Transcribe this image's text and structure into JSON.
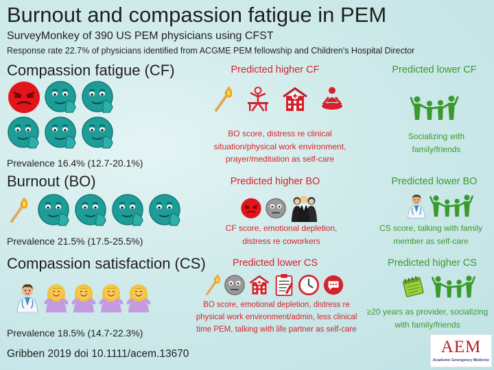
{
  "header": {
    "title": "Burnout and compassion fatigue in PEM",
    "subtitle": "SurveyMonkey of 390 US PEM physicians using CFST",
    "response_rate": "Response rate 22.7% of physicians identified from ACGME PEM fellowship and Children's Hospital Director"
  },
  "colors": {
    "red": "#d6212b",
    "green": "#3a9a2d",
    "teal_face": "#1e9c97",
    "logo_red": "#b52020"
  },
  "cf": {
    "title": "Compassion fatigue (CF)",
    "prevalence": "Prevalence 16.4% (12.7-20.1%)",
    "icons": [
      "red-stressed-face-icon",
      "teal-face-icon",
      "teal-face-icon",
      "teal-face-icon",
      "teal-face-icon",
      "teal-face-icon"
    ],
    "higher": {
      "heading": "Predicted higher CF",
      "icons": [
        "burning-match-icon",
        "stressed-worker-icon",
        "hospital-icon",
        "meditation-icon"
      ],
      "line1": "BO score, distress re clinical",
      "line2": "situation/physical work environment,",
      "line3": "prayer/meditation as self-care"
    },
    "lower": {
      "heading": "Predicted lower CF",
      "icons": [
        "family-group-icon"
      ],
      "line1": "Socializing with",
      "line2": "family/friends"
    }
  },
  "bo": {
    "title": "Burnout (BO)",
    "prevalence": "Prevalence 21.5% (17.5-25.5%)",
    "icons": [
      "burning-match-icon",
      "teal-face-icon",
      "teal-face-icon",
      "teal-face-icon",
      "teal-face-icon"
    ],
    "higher": {
      "heading": "Predicted higher BO",
      "icons": [
        "red-stressed-face-icon",
        "grey-face-icon",
        "coworkers-icon"
      ],
      "line1": "CF score, emotional depletion,",
      "line2": "distress re coworkers"
    },
    "lower": {
      "heading": "Predicted lower BO",
      "icons": [
        "doctor-icon",
        "family-group-icon"
      ],
      "line1": "CS score, talking with family",
      "line2": "member as self-care"
    }
  },
  "cs": {
    "title": "Compassion satisfaction (CS)",
    "prevalence": "Prevalence 18.5% (14.7-22.3%)",
    "icons": [
      "doctor-icon",
      "happy-person-icon",
      "happy-person-icon",
      "happy-person-icon",
      "happy-person-icon"
    ],
    "lower": {
      "heading": "Predicted lower CS",
      "icons": [
        "burning-match-icon",
        "grey-face-icon",
        "hospital-icon",
        "clipboard-icon",
        "clock-icon",
        "speech-bubble-icon"
      ],
      "line1": "BO score, emotional depletion, distress re",
      "line2": "physical work environment/admin, less clinical",
      "line3": "time PEM, talking with life partner as self-care"
    },
    "higher": {
      "heading": "Predicted higher CS",
      "icons": [
        "calendar-icon",
        "family-group-icon"
      ],
      "line1": "≥20 years as provider, socializing",
      "line2": "with family/friends"
    }
  },
  "citation": "Gribben 2019 doi 10.1111/acem.13670",
  "logo": {
    "main": "AEM",
    "sub": "Academic Emergency Medicine"
  }
}
